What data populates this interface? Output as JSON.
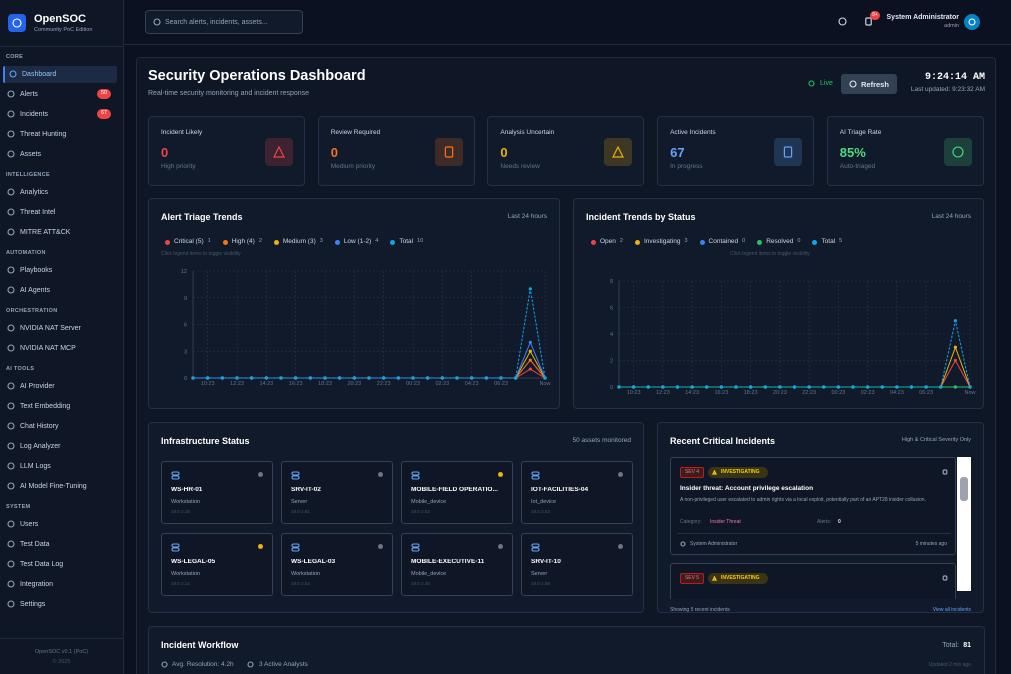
{
  "sidebar": {
    "brand": "OpenSOC",
    "edition": "Community PoC Edition",
    "sections": [
      {
        "title": "CORE",
        "items": [
          {
            "label": "Dashboard"
          },
          {
            "label": "Alerts",
            "badge": "50"
          },
          {
            "label": "Incidents",
            "badge": "67"
          },
          {
            "label": "Threat Hunting"
          },
          {
            "label": "Assets"
          }
        ]
      },
      {
        "title": "INTELLIGENCE",
        "items": [
          {
            "label": "Analytics"
          },
          {
            "label": "Threat Intel"
          },
          {
            "label": "MITRE ATT&CK"
          }
        ]
      },
      {
        "title": "AUTOMATION",
        "items": [
          {
            "label": "Playbooks"
          },
          {
            "label": "AI Agents"
          }
        ]
      },
      {
        "title": "ORCHESTRATION",
        "items": [
          {
            "label": "NVIDIA NAT Server"
          },
          {
            "label": "NVIDIA NAT MCP"
          }
        ]
      },
      {
        "title": "AI TOOLS",
        "items": [
          {
            "label": "AI Provider"
          },
          {
            "label": "Text Embedding"
          },
          {
            "label": "Chat History"
          },
          {
            "label": "Log Analyzer"
          },
          {
            "label": "LLM Logs"
          },
          {
            "label": "AI Model Fine-Tuning"
          }
        ]
      },
      {
        "title": "SYSTEM",
        "items": [
          {
            "label": "Users"
          },
          {
            "label": "Test Data"
          },
          {
            "label": "Test Data Log"
          },
          {
            "label": "Integration"
          },
          {
            "label": "Settings"
          }
        ]
      }
    ],
    "footer": [
      "OpenSOC v0.1 (PoC)",
      "© 2025"
    ]
  },
  "topbar": {
    "search_placeholder": "Search alerts, incidents, assets...",
    "notifications": "9+",
    "user": "System Administrator",
    "role": "admin"
  },
  "header": {
    "title": "Security Operations Dashboard",
    "subtitle": "Real-time security monitoring and incident response",
    "live": "Live",
    "refresh": "Refresh",
    "clock": "9:24:14 AM",
    "last_updated": "Last updated: 9:23:32 AM"
  },
  "stats": [
    {
      "label": "Incident Likely",
      "value": "0",
      "note": "High priority",
      "color": "#ef4444"
    },
    {
      "label": "Review Required",
      "value": "0",
      "note": "Medium priority",
      "color": "#f97316"
    },
    {
      "label": "Analysis Uncertain",
      "value": "0",
      "note": "Needs review",
      "color": "#eab308"
    },
    {
      "label": "Active Incidents",
      "value": "67",
      "note": "In progress",
      "color": "#60a5fa"
    },
    {
      "label": "AI Triage Rate",
      "value": "85%",
      "note": "Auto-triaged",
      "color": "#4ade80"
    }
  ],
  "charts": [
    {
      "type": "line",
      "title": "Alert Triage Trends",
      "subtitle": "Last 24 hours",
      "hint": "Click legend items to toggle visibility",
      "categories": [
        null,
        "10:23",
        null,
        "12:23",
        null,
        "14:23",
        null,
        "16:23",
        null,
        "18:23",
        null,
        "20:23",
        null,
        "22:23",
        null,
        "00:23",
        null,
        "02:23",
        null,
        "04:23",
        null,
        "06:23",
        null,
        null,
        "Now"
      ],
      "ylim": [
        0,
        12
      ],
      "yticks": [
        0,
        3,
        6,
        9,
        12
      ],
      "series": [
        {
          "name": "Critical (5)",
          "count": 1,
          "color": "#ef4444",
          "values": [
            0,
            0,
            0,
            0,
            0,
            0,
            0,
            0,
            0,
            0,
            0,
            0,
            0,
            0,
            0,
            0,
            0,
            0,
            0,
            0,
            0,
            0,
            0,
            1,
            0
          ]
        },
        {
          "name": "High (4)",
          "count": 2,
          "color": "#f97316",
          "values": [
            0,
            0,
            0,
            0,
            0,
            0,
            0,
            0,
            0,
            0,
            0,
            0,
            0,
            0,
            0,
            0,
            0,
            0,
            0,
            0,
            0,
            0,
            0,
            2,
            0
          ]
        },
        {
          "name": "Medium (3)",
          "count": 3,
          "color": "#eab308",
          "values": [
            0,
            0,
            0,
            0,
            0,
            0,
            0,
            0,
            0,
            0,
            0,
            0,
            0,
            0,
            0,
            0,
            0,
            0,
            0,
            0,
            0,
            0,
            0,
            3,
            0
          ]
        },
        {
          "name": "Low (1-2)",
          "count": 4,
          "color": "#3b82f6",
          "values": [
            0,
            0,
            0,
            0,
            0,
            0,
            0,
            0,
            0,
            0,
            0,
            0,
            0,
            0,
            0,
            0,
            0,
            0,
            0,
            0,
            0,
            0,
            0,
            4,
            0
          ]
        },
        {
          "name": "Total",
          "count": 10,
          "color": "#0ea5e9",
          "dashed": true,
          "values": [
            0,
            0,
            0,
            0,
            0,
            0,
            0,
            0,
            0,
            0,
            0,
            0,
            0,
            0,
            0,
            0,
            0,
            0,
            0,
            0,
            0,
            0,
            0,
            10,
            0
          ]
        }
      ]
    },
    {
      "type": "line",
      "title": "Incident Trends by Status",
      "subtitle": "Last 24 hours",
      "hint": "Click legend items to toggle visibility",
      "categories": [
        null,
        "10:23",
        null,
        "12:23",
        null,
        "14:23",
        null,
        "16:23",
        null,
        "18:23",
        null,
        "20:23",
        null,
        "22:23",
        null,
        "00:23",
        null,
        "02:23",
        null,
        "04:23",
        null,
        "06:23",
        null,
        null,
        "Now"
      ],
      "ylim": [
        0,
        8
      ],
      "yticks": [
        0,
        2,
        4,
        6,
        8
      ],
      "series": [
        {
          "name": "Open",
          "count": 2,
          "color": "#ef4444",
          "values": [
            0,
            0,
            0,
            0,
            0,
            0,
            0,
            0,
            0,
            0,
            0,
            0,
            0,
            0,
            0,
            0,
            0,
            0,
            0,
            0,
            0,
            0,
            0,
            2,
            0
          ]
        },
        {
          "name": "Investigating",
          "count": 3,
          "color": "#eab308",
          "values": [
            0,
            0,
            0,
            0,
            0,
            0,
            0,
            0,
            0,
            0,
            0,
            0,
            0,
            0,
            0,
            0,
            0,
            0,
            0,
            0,
            0,
            0,
            0,
            3,
            0
          ]
        },
        {
          "name": "Contained",
          "count": 0,
          "color": "#3b82f6",
          "values": [
            0,
            0,
            0,
            0,
            0,
            0,
            0,
            0,
            0,
            0,
            0,
            0,
            0,
            0,
            0,
            0,
            0,
            0,
            0,
            0,
            0,
            0,
            0,
            0,
            0
          ]
        },
        {
          "name": "Resolved",
          "count": 0,
          "color": "#22c55e",
          "values": [
            0,
            0,
            0,
            0,
            0,
            0,
            0,
            0,
            0,
            0,
            0,
            0,
            0,
            0,
            0,
            0,
            0,
            0,
            0,
            0,
            0,
            0,
            0,
            0,
            0
          ]
        },
        {
          "name": "Total",
          "count": 5,
          "color": "#0ea5e9",
          "dashed": true,
          "values": [
            0,
            0,
            0,
            0,
            0,
            0,
            0,
            0,
            0,
            0,
            0,
            0,
            0,
            0,
            0,
            0,
            0,
            0,
            0,
            0,
            0,
            0,
            0,
            5,
            0
          ]
        }
      ]
    }
  ],
  "infrastructure": {
    "title": "Infrastructure Status",
    "summary": "50 assets monitored",
    "assets": [
      {
        "name": "WS-HR-01",
        "type": "Workstation",
        "ip": "10.0.2.10",
        "status_color": "#6b7280"
      },
      {
        "name": "SRV-IT-02",
        "type": "Server",
        "ip": "10.0.1.51",
        "status_color": "#6b7280"
      },
      {
        "name": "MOBILE-FIELD OPERATIO...",
        "type": "Mobile_device",
        "ip": "10.0.2.52",
        "status_color": "#eab308"
      },
      {
        "name": "IOT-FACILITIES-04",
        "type": "Iot_device",
        "ip": "10.0.3.53",
        "status_color": "#6b7280"
      },
      {
        "name": "WS-LEGAL-05",
        "type": "Workstation",
        "ip": "10.0.2.14",
        "status_color": "#eab308"
      },
      {
        "name": "WS-LEGAL-03",
        "type": "Workstation",
        "ip": "10.0.2.54",
        "status_color": "#6b7280"
      },
      {
        "name": "MOBILE-EXECUTIVE-11",
        "type": "Mobile_device",
        "ip": "10.0.2.40",
        "status_color": "#6b7280"
      },
      {
        "name": "SRV-IT-10",
        "type": "Server",
        "ip": "10.0.1.59",
        "status_color": "#6b7280"
      }
    ]
  },
  "incidents": {
    "title": "Recent Critical Incidents",
    "subtitle": "High & Critical Severity Only",
    "items": [
      {
        "severity": "SEV 4",
        "status": "INVESTIGATING",
        "title": "Insider threat: Account privilege escalation",
        "description": "A non-privileged user escalated to admin rights via a local exploit, potentially part of an APT28 insider collusion.",
        "category_label": "Category:",
        "category": "Insider Threat",
        "alerts_label": "Alerts:",
        "alerts": "0",
        "owner": "System Administrator",
        "time": "5 minutes ago"
      },
      {
        "severity": "SEV 5",
        "status": "INVESTIGATING"
      }
    ],
    "footer": "Showing 5 recent incidents",
    "link": "View all incidents"
  },
  "workflow": {
    "title": "Incident Workflow",
    "total_label": "Total:",
    "total": "81",
    "avg_resolution": "Avg. Resolution: 4.2h",
    "analysts": "3 Active Analysts",
    "updated": "Updated 2 min ago"
  }
}
